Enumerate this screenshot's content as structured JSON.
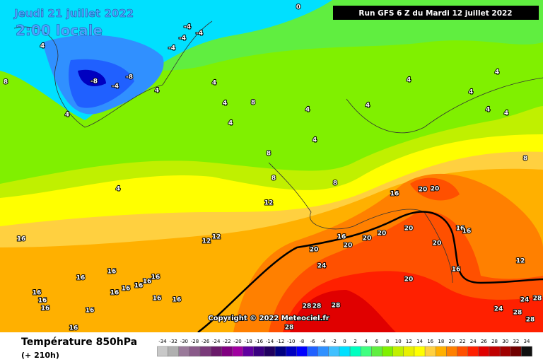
{
  "header": {
    "date": "Jeudi 21 juillet 2022",
    "time": "2:00 locale",
    "run": "Run GFS 6 Z du Mardi 12 juillet 2022"
  },
  "copyright": "Copyright © 2022 Meteociel.fr",
  "footer": {
    "title": "Température 850hPa",
    "lead": "(+ 210h)"
  },
  "contour_labels": [
    0,
    4,
    -4,
    -4,
    -4,
    -4,
    -8,
    -8,
    -4,
    4,
    4,
    8,
    4,
    4,
    8,
    4,
    4,
    4,
    4,
    4,
    4,
    4,
    4,
    8,
    4,
    8,
    4,
    8,
    8,
    16,
    20,
    20,
    12,
    12,
    12,
    16,
    16,
    20,
    20,
    20,
    16,
    16,
    20,
    20,
    24,
    20,
    16,
    12,
    20,
    16,
    16,
    16,
    16,
    16,
    16,
    16,
    16,
    16,
    16,
    16,
    16,
    16,
    16,
    28,
    28,
    28,
    28,
    24,
    24,
    28,
    28,
    28
  ],
  "scale": {
    "ticks": [
      -34,
      -32,
      -30,
      -28,
      -26,
      -24,
      -22,
      -20,
      -18,
      -16,
      -14,
      -12,
      -10,
      -8,
      -6,
      -4,
      -2,
      0,
      2,
      4,
      6,
      8,
      10,
      12,
      14,
      16,
      18,
      20,
      22,
      24,
      26,
      28,
      30,
      32,
      34
    ],
    "colors": [
      "#c8c8c8",
      "#b0b0b0",
      "#9a7a9a",
      "#8a5a8a",
      "#7a3a7a",
      "#6a1a6a",
      "#800080",
      "#a000a0",
      "#6000a0",
      "#3a0080",
      "#200060",
      "#000080",
      "#0000c0",
      "#0000ff",
      "#2060ff",
      "#3090ff",
      "#40c0ff",
      "#00e0ff",
      "#00ffc0",
      "#40ff80",
      "#60ee40",
      "#80f000",
      "#c0f000",
      "#e8f000",
      "#ffff00",
      "#ffd040",
      "#ffb000",
      "#ff8000",
      "#ff5000",
      "#ff2000",
      "#e00000",
      "#c00000",
      "#a00000",
      "#700000",
      "#101010"
    ]
  }
}
